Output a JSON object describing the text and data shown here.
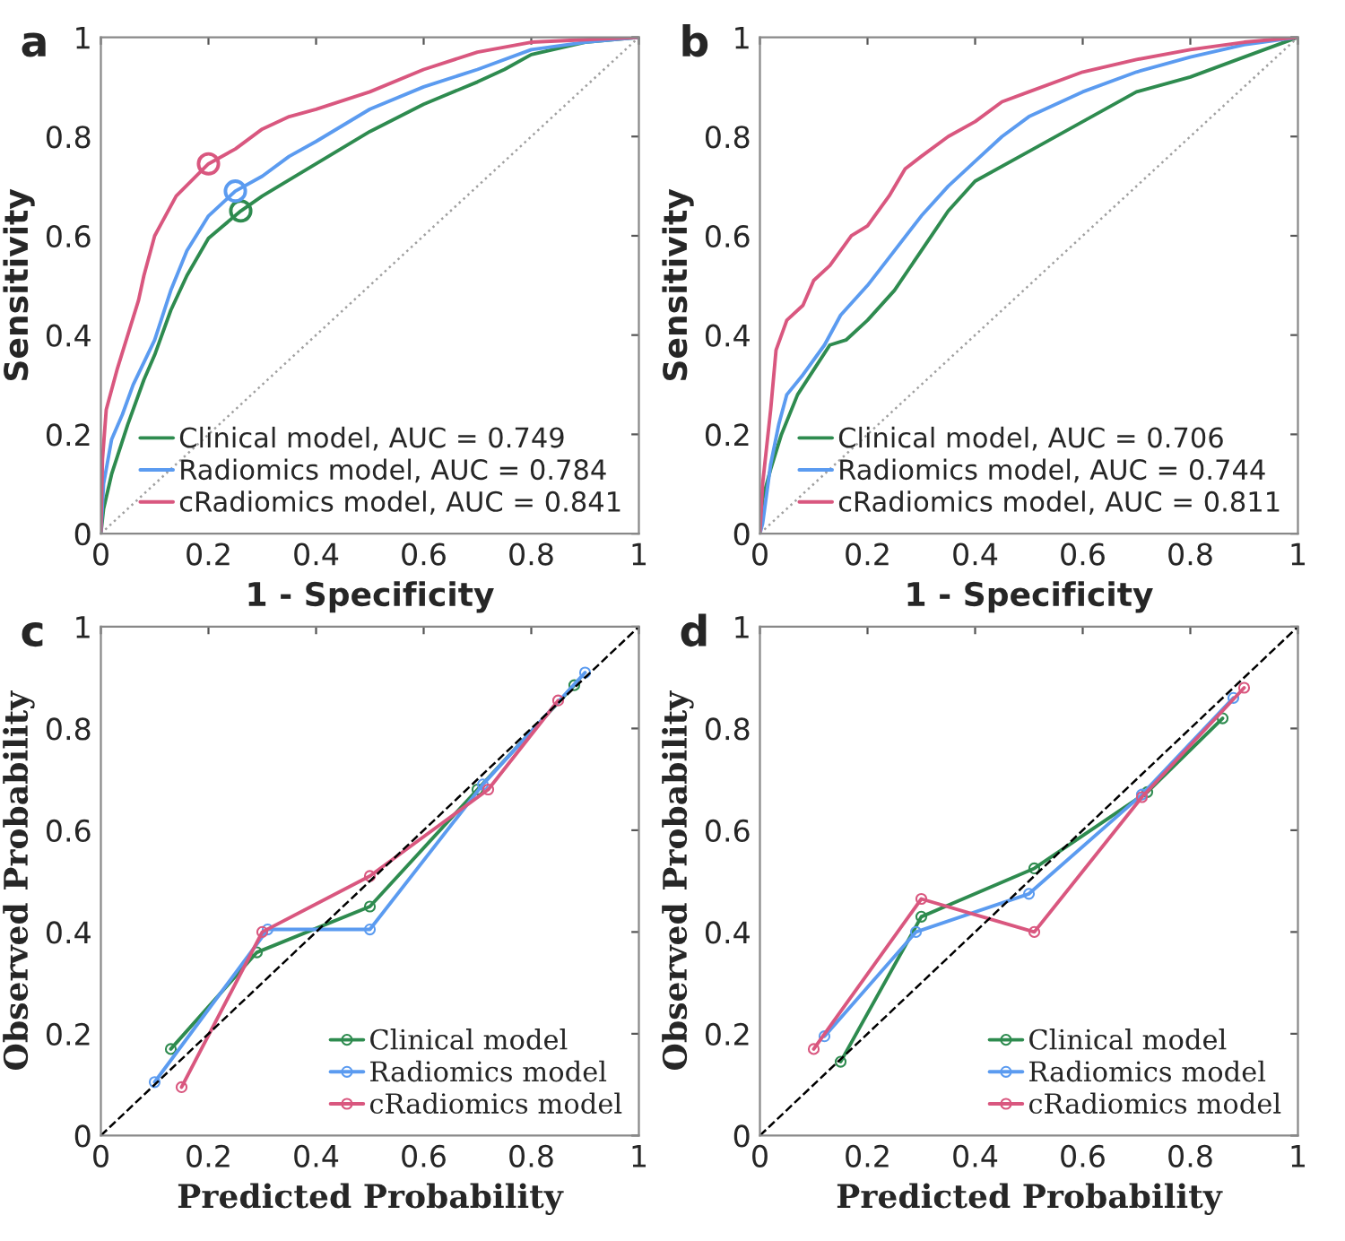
{
  "chart_data": [
    {
      "type": "line",
      "title": "a",
      "xlabel": "1 - Specificity",
      "ylabel": "Sensitivity",
      "xlim": [
        0,
        1
      ],
      "ylim": [
        0,
        1
      ],
      "xticks": [
        0,
        0.2,
        0.4,
        0.6,
        0.8,
        1
      ],
      "yticks": [
        0,
        0.2,
        0.4,
        0.6,
        0.8,
        1
      ],
      "grid": false,
      "legend": "bottom right",
      "series": [
        {
          "name": "Clinical model, AUC = 0.749",
          "color": "#2e8b4f",
          "x": [
            0,
            0.005,
            0.02,
            0.05,
            0.08,
            0.1,
            0.13,
            0.16,
            0.2,
            0.26,
            0.3,
            0.4,
            0.5,
            0.6,
            0.7,
            0.75,
            0.8,
            0.9,
            1
          ],
          "values": [
            0,
            0.05,
            0.12,
            0.22,
            0.31,
            0.36,
            0.45,
            0.52,
            0.595,
            0.65,
            0.68,
            0.745,
            0.81,
            0.865,
            0.91,
            0.935,
            0.965,
            0.99,
            1
          ]
        },
        {
          "name": "Radiomics model, AUC = 0.784",
          "color": "#5b9bf0",
          "x": [
            0,
            0.005,
            0.02,
            0.04,
            0.06,
            0.1,
            0.13,
            0.16,
            0.2,
            0.25,
            0.3,
            0.35,
            0.4,
            0.5,
            0.6,
            0.7,
            0.8,
            0.9,
            1
          ],
          "values": [
            0,
            0.1,
            0.19,
            0.24,
            0.3,
            0.39,
            0.49,
            0.57,
            0.64,
            0.69,
            0.72,
            0.76,
            0.79,
            0.855,
            0.9,
            0.935,
            0.975,
            0.99,
            1
          ]
        },
        {
          "name": "cRadiomics model, AUC = 0.841",
          "color": "#d9577f",
          "x": [
            0,
            0.003,
            0.01,
            0.03,
            0.05,
            0.07,
            0.08,
            0.1,
            0.14,
            0.2,
            0.25,
            0.3,
            0.35,
            0.4,
            0.5,
            0.6,
            0.7,
            0.8,
            0.9,
            1
          ],
          "values": [
            0,
            0.15,
            0.25,
            0.33,
            0.4,
            0.47,
            0.52,
            0.6,
            0.68,
            0.745,
            0.775,
            0.815,
            0.84,
            0.855,
            0.89,
            0.935,
            0.97,
            0.99,
            0.995,
            1
          ]
        },
        {
          "type": "scatter",
          "marker": "circle",
          "colors": [
            "#2e8b4f",
            "#5b9bf0",
            "#d9577f"
          ],
          "x": [
            0.26,
            0.25,
            0.2
          ],
          "values": [
            0.65,
            0.69,
            0.745
          ]
        },
        {
          "color": "#a0a0a0",
          "line_style": "dotted",
          "x": [
            0,
            1
          ],
          "values": [
            0,
            1
          ]
        }
      ]
    },
    {
      "type": "line",
      "title": "b",
      "xlabel": "1 - Specificity",
      "ylabel": "Sensitivity",
      "xlim": [
        0,
        1
      ],
      "ylim": [
        0,
        1
      ],
      "xticks": [
        0,
        0.2,
        0.4,
        0.6,
        0.8,
        1
      ],
      "yticks": [
        0,
        0.2,
        0.4,
        0.6,
        0.8,
        1
      ],
      "grid": false,
      "legend": "bottom right",
      "series": [
        {
          "name": "Clinical model, AUC = 0.706",
          "color": "#2e8b4f",
          "x": [
            0,
            0.005,
            0.02,
            0.04,
            0.07,
            0.1,
            0.13,
            0.16,
            0.2,
            0.25,
            0.3,
            0.35,
            0.4,
            0.5,
            0.6,
            0.7,
            0.8,
            0.9,
            1
          ],
          "values": [
            0,
            0.07,
            0.13,
            0.2,
            0.28,
            0.33,
            0.38,
            0.39,
            0.43,
            0.49,
            0.57,
            0.65,
            0.71,
            0.77,
            0.83,
            0.89,
            0.92,
            0.96,
            1
          ]
        },
        {
          "name": "Radiomics model, AUC = 0.744",
          "color": "#5b9bf0",
          "x": [
            0,
            0.005,
            0.02,
            0.035,
            0.05,
            0.08,
            0.12,
            0.15,
            0.2,
            0.25,
            0.3,
            0.35,
            0.4,
            0.45,
            0.5,
            0.6,
            0.7,
            0.8,
            0.9,
            1
          ],
          "values": [
            0,
            0.02,
            0.14,
            0.22,
            0.28,
            0.32,
            0.38,
            0.44,
            0.5,
            0.57,
            0.64,
            0.7,
            0.75,
            0.8,
            0.84,
            0.89,
            0.93,
            0.96,
            0.985,
            1
          ]
        },
        {
          "name": "cRadiomics model, AUC = 0.811",
          "color": "#d9577f",
          "x": [
            0,
            0.005,
            0.02,
            0.03,
            0.05,
            0.08,
            0.1,
            0.13,
            0.17,
            0.2,
            0.24,
            0.27,
            0.3,
            0.35,
            0.4,
            0.45,
            0.5,
            0.6,
            0.7,
            0.8,
            0.9,
            1
          ],
          "values": [
            0,
            0.1,
            0.25,
            0.37,
            0.43,
            0.46,
            0.51,
            0.54,
            0.6,
            0.62,
            0.68,
            0.735,
            0.76,
            0.8,
            0.83,
            0.87,
            0.89,
            0.93,
            0.955,
            0.975,
            0.99,
            1
          ]
        },
        {
          "color": "#a0a0a0",
          "line_style": "dotted",
          "x": [
            0,
            1
          ],
          "values": [
            0,
            1
          ]
        }
      ]
    },
    {
      "type": "line",
      "title": "c",
      "xlabel": "Predicted Probability",
      "ylabel": "Observed Probability",
      "xlim": [
        0,
        1
      ],
      "ylim": [
        0,
        1
      ],
      "xticks": [
        0,
        0.2,
        0.4,
        0.6,
        0.8,
        1
      ],
      "yticks": [
        0,
        0.2,
        0.4,
        0.6,
        0.8,
        1
      ],
      "grid": false,
      "legend": "bottom right",
      "series": [
        {
          "name": "Clinical model",
          "color": "#2e8b4f",
          "marker": "circle",
          "x": [
            0.13,
            0.29,
            0.5,
            0.7,
            0.88
          ],
          "values": [
            0.17,
            0.36,
            0.45,
            0.68,
            0.885
          ]
        },
        {
          "name": "Radiomics model",
          "color": "#5b9bf0",
          "marker": "circle",
          "x": [
            0.1,
            0.31,
            0.5,
            0.71,
            0.9
          ],
          "values": [
            0.105,
            0.405,
            0.405,
            0.69,
            0.91
          ]
        },
        {
          "name": "cRadiomics model",
          "color": "#d9577f",
          "marker": "circle",
          "x": [
            0.15,
            0.3,
            0.5,
            0.72,
            0.85
          ],
          "values": [
            0.095,
            0.4,
            0.51,
            0.68,
            0.855
          ]
        },
        {
          "color": "#000000",
          "line_style": "dashed",
          "x": [
            0,
            1
          ],
          "values": [
            0,
            1
          ]
        }
      ]
    },
    {
      "type": "line",
      "title": "d",
      "xlabel": "Predicted Probability",
      "ylabel": "Observed Probability",
      "xlim": [
        0,
        1
      ],
      "ylim": [
        0,
        1
      ],
      "xticks": [
        0,
        0.2,
        0.4,
        0.6,
        0.8,
        1
      ],
      "yticks": [
        0,
        0.2,
        0.4,
        0.6,
        0.8,
        1
      ],
      "grid": false,
      "legend": "bottom right",
      "series": [
        {
          "name": "Clinical model",
          "color": "#2e8b4f",
          "marker": "circle",
          "x": [
            0.15,
            0.3,
            0.51,
            0.72,
            0.86
          ],
          "values": [
            0.145,
            0.43,
            0.525,
            0.675,
            0.82
          ]
        },
        {
          "name": "Radiomics model",
          "color": "#5b9bf0",
          "marker": "circle",
          "x": [
            0.12,
            0.29,
            0.5,
            0.71,
            0.88
          ],
          "values": [
            0.195,
            0.4,
            0.475,
            0.67,
            0.86
          ]
        },
        {
          "name": "cRadiomics model",
          "color": "#d9577f",
          "marker": "circle",
          "x": [
            0.1,
            0.3,
            0.51,
            0.71,
            0.9
          ],
          "values": [
            0.17,
            0.465,
            0.4,
            0.665,
            0.88
          ]
        },
        {
          "color": "#000000",
          "line_style": "dashed",
          "x": [
            0,
            1
          ],
          "values": [
            0,
            1
          ]
        }
      ]
    }
  ]
}
